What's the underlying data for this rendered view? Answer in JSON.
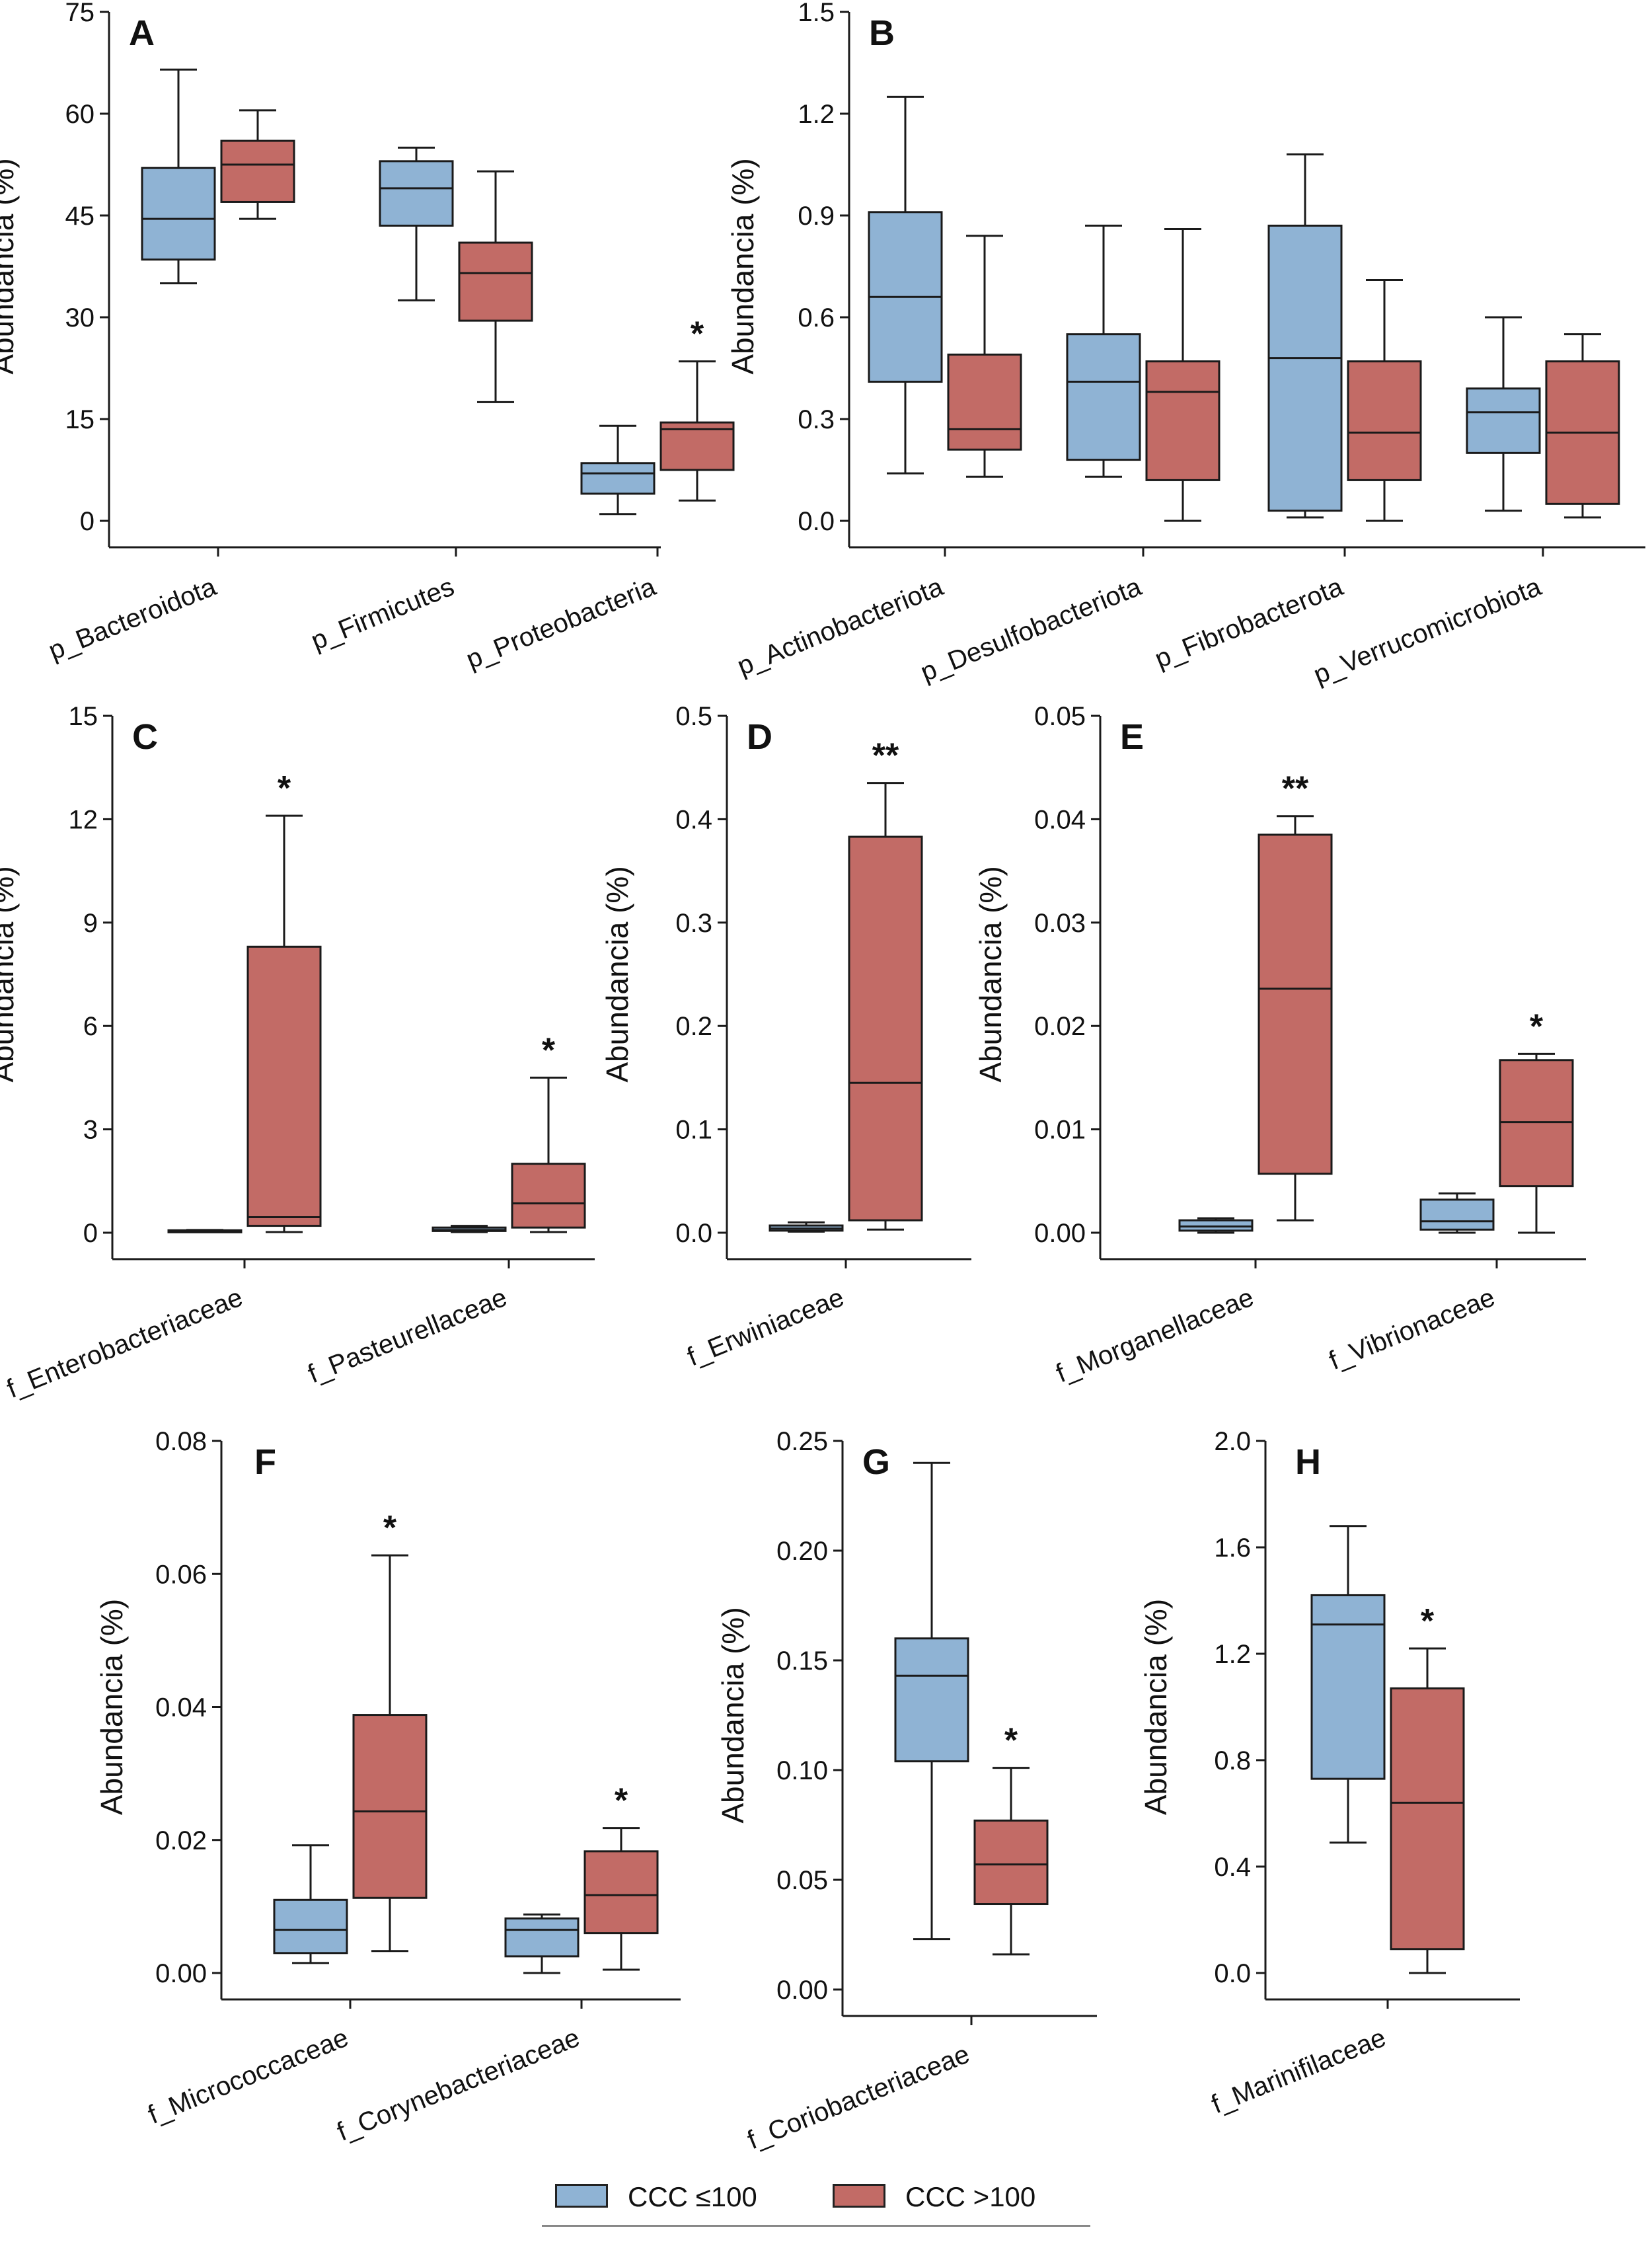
{
  "colors": {
    "ccc_le100": "#8fb3d4",
    "ccc_gt100": "#c26b66",
    "stroke": "#1a1a1a"
  },
  "legend": {
    "items": [
      {
        "label": "CCC ≤100",
        "color": "#8fb3d4"
      },
      {
        "label": "CCC >100",
        "color": "#c26b66"
      }
    ]
  },
  "chart_data": [
    {
      "panel": "A",
      "type": "box",
      "ylabel": "Abundancia (%)",
      "ylim": [
        0,
        75
      ],
      "ticks": [
        "0",
        "15",
        "30",
        "45",
        "60",
        "75"
      ],
      "categories": [
        {
          "label": "p_Bacteroidota",
          "boxes": [
            {
              "min": 35,
              "q1": 38.5,
              "median": 44.5,
              "q3": 52,
              "max": 66.5
            },
            {
              "min": 44.5,
              "q1": 47,
              "median": 52.5,
              "q3": 56,
              "max": 60.5
            }
          ],
          "sig": ""
        },
        {
          "label": "p_Firmicutes",
          "boxes": [
            {
              "min": 32.5,
              "q1": 43.5,
              "median": 49,
              "q3": 53,
              "max": 55
            },
            {
              "min": 17.5,
              "q1": 29.5,
              "median": 36.5,
              "q3": 41,
              "max": 51.5
            }
          ],
          "sig": ""
        },
        {
          "label": "p_Proteobacteria",
          "boxes": [
            {
              "min": 1,
              "q1": 4,
              "median": 7,
              "q3": 8.5,
              "max": 14
            },
            {
              "min": 3,
              "q1": 7.5,
              "median": 13.5,
              "q3": 14.5,
              "max": 23.5
            }
          ],
          "sig": "*"
        }
      ]
    },
    {
      "panel": "B",
      "type": "box",
      "ylabel": "Abundancia (%)",
      "ylim": [
        0,
        1.5
      ],
      "ticks": [
        "0.0",
        "0.3",
        "0.6",
        "0.9",
        "1.2",
        "1.5"
      ],
      "categories": [
        {
          "label": "p_Actinobacteriota",
          "boxes": [
            {
              "min": 0.14,
              "q1": 0.41,
              "median": 0.66,
              "q3": 0.91,
              "max": 1.25
            },
            {
              "min": 0.13,
              "q1": 0.21,
              "median": 0.27,
              "q3": 0.49,
              "max": 0.84
            }
          ],
          "sig": ""
        },
        {
          "label": "p_Desulfobacteriota",
          "boxes": [
            {
              "min": 0.13,
              "q1": 0.18,
              "median": 0.41,
              "q3": 0.55,
              "max": 0.87
            },
            {
              "min": 0.0,
              "q1": 0.12,
              "median": 0.38,
              "q3": 0.47,
              "max": 0.86
            }
          ],
          "sig": ""
        },
        {
          "label": "p_Fibrobacterota",
          "boxes": [
            {
              "min": 0.01,
              "q1": 0.03,
              "median": 0.48,
              "q3": 0.87,
              "max": 1.08
            },
            {
              "min": 0.0,
              "q1": 0.12,
              "median": 0.26,
              "q3": 0.47,
              "max": 0.71
            }
          ],
          "sig": ""
        },
        {
          "label": "p_Verrucomicrobiota",
          "boxes": [
            {
              "min": 0.03,
              "q1": 0.2,
              "median": 0.32,
              "q3": 0.39,
              "max": 0.6
            },
            {
              "min": 0.01,
              "q1": 0.05,
              "median": 0.26,
              "q3": 0.47,
              "max": 0.55
            }
          ],
          "sig": ""
        }
      ]
    },
    {
      "panel": "C",
      "type": "box",
      "ylabel": "Abundancia (%)",
      "ylim": [
        0,
        15
      ],
      "ticks": [
        "0",
        "3",
        "6",
        "9",
        "12",
        "15"
      ],
      "categories": [
        {
          "label": "f_Enterobacteriaceae",
          "boxes": [
            {
              "min": 0.02,
              "q1": 0.03,
              "median": 0.05,
              "q3": 0.07,
              "max": 0.08
            },
            {
              "min": 0.02,
              "q1": 0.2,
              "median": 0.45,
              "q3": 8.3,
              "max": 12.1
            }
          ],
          "sig": "*"
        },
        {
          "label": "f_Pasteurellaceae",
          "boxes": [
            {
              "min": 0.02,
              "q1": 0.05,
              "median": 0.08,
              "q3": 0.15,
              "max": 0.2
            },
            {
              "min": 0.02,
              "q1": 0.15,
              "median": 0.85,
              "q3": 2.0,
              "max": 4.5
            }
          ],
          "sig": "*"
        }
      ]
    },
    {
      "panel": "D",
      "type": "box",
      "ylabel": "Abundancia (%)",
      "ylim": [
        0,
        0.5
      ],
      "ticks": [
        "0.0",
        "0.1",
        "0.2",
        "0.3",
        "0.4",
        "0.5"
      ],
      "categories": [
        {
          "label": "f_Erwiniaceae",
          "boxes": [
            {
              "min": 0.001,
              "q1": 0.002,
              "median": 0.004,
              "q3": 0.007,
              "max": 0.01
            },
            {
              "min": 0.003,
              "q1": 0.012,
              "median": 0.145,
              "q3": 0.383,
              "max": 0.435
            }
          ],
          "sig": "**"
        }
      ]
    },
    {
      "panel": "E",
      "type": "box",
      "ylabel": "Abundancia (%)",
      "ylim": [
        0,
        0.05
      ],
      "ticks": [
        "0.00",
        "0.01",
        "0.02",
        "0.03",
        "0.04",
        "0.05"
      ],
      "categories": [
        {
          "label": "f_Morganellaceae",
          "boxes": [
            {
              "min": 0.0,
              "q1": 0.0002,
              "median": 0.0006,
              "q3": 0.0012,
              "max": 0.0014
            },
            {
              "min": 0.0012,
              "q1": 0.0057,
              "median": 0.0236,
              "q3": 0.0385,
              "max": 0.0403
            }
          ],
          "sig": "**"
        },
        {
          "label": "f_Vibrionaceae",
          "boxes": [
            {
              "min": 0.0,
              "q1": 0.0003,
              "median": 0.0011,
              "q3": 0.0032,
              "max": 0.0038
            },
            {
              "min": 0.0,
              "q1": 0.0045,
              "median": 0.0107,
              "q3": 0.0167,
              "max": 0.0173
            }
          ],
          "sig": "*"
        }
      ]
    },
    {
      "panel": "F",
      "type": "box",
      "ylabel": "Abundancia (%)",
      "ylim": [
        0,
        0.08
      ],
      "ticks": [
        "0.00",
        "0.02",
        "0.04",
        "0.06",
        "0.08"
      ],
      "categories": [
        {
          "label": "f_Micrococcaceae",
          "boxes": [
            {
              "min": 0.0015,
              "q1": 0.003,
              "median": 0.0065,
              "q3": 0.011,
              "max": 0.0192
            },
            {
              "min": 0.0033,
              "q1": 0.0113,
              "median": 0.0243,
              "q3": 0.0388,
              "max": 0.0628
            }
          ],
          "sig": "*"
        },
        {
          "label": "f_Corynebacteriaceae",
          "boxes": [
            {
              "min": 0.0,
              "q1": 0.0025,
              "median": 0.0065,
              "q3": 0.0082,
              "max": 0.0088
            },
            {
              "min": 0.0005,
              "q1": 0.006,
              "median": 0.0117,
              "q3": 0.0183,
              "max": 0.0218
            }
          ],
          "sig": "*"
        }
      ]
    },
    {
      "panel": "G",
      "type": "box",
      "ylabel": "Abundancia (%)",
      "ylim": [
        0,
        0.25
      ],
      "ticks": [
        "0.00",
        "0.05",
        "0.10",
        "0.15",
        "0.20",
        "0.25"
      ],
      "categories": [
        {
          "label": "f_Coriobacteriaceae",
          "boxes": [
            {
              "min": 0.023,
              "q1": 0.104,
              "median": 0.143,
              "q3": 0.16,
              "max": 0.24
            },
            {
              "min": 0.016,
              "q1": 0.039,
              "median": 0.057,
              "q3": 0.077,
              "max": 0.101
            }
          ],
          "sig": "*"
        }
      ]
    },
    {
      "panel": "H",
      "type": "box",
      "ylabel": "Abundancia (%)",
      "ylim": [
        0,
        2.0
      ],
      "ticks": [
        "0.0",
        "0.4",
        "0.8",
        "1.2",
        "1.6",
        "2.0"
      ],
      "categories": [
        {
          "label": "f_Marinifilaceae",
          "boxes": [
            {
              "min": 0.49,
              "q1": 0.73,
              "median": 1.31,
              "q3": 1.42,
              "max": 1.68
            },
            {
              "min": 0.0,
              "q1": 0.09,
              "median": 0.64,
              "q3": 1.07,
              "max": 1.22
            }
          ],
          "sig": "*"
        }
      ]
    }
  ]
}
